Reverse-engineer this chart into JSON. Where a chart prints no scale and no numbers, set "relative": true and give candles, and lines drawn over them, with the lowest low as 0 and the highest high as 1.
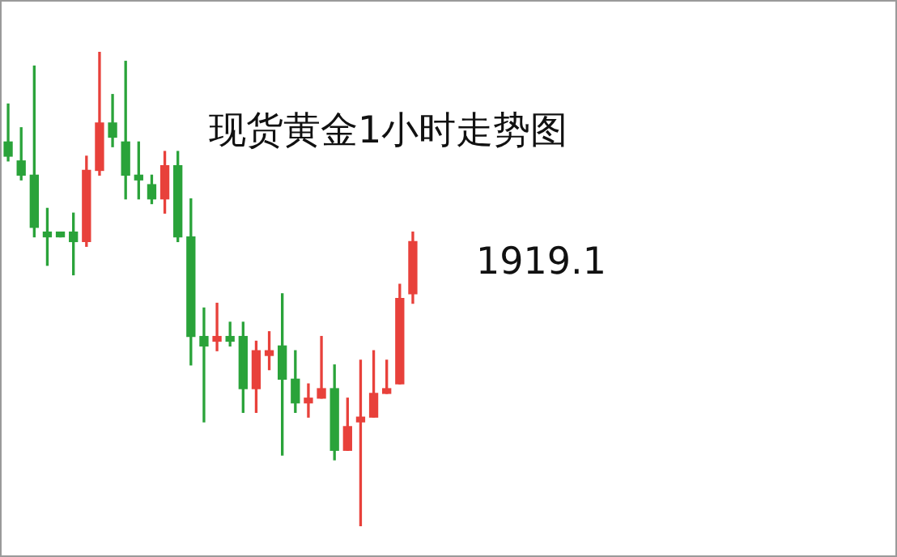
{
  "chart_data": {
    "type": "candlestick",
    "title": "现货黄金1小时走势图",
    "annotations": [
      "1919.1"
    ],
    "relative": true,
    "legend": false,
    "categories": [
      null,
      null,
      null,
      null,
      null,
      null,
      null,
      null,
      null,
      null,
      null,
      null,
      null,
      null,
      null,
      null,
      null,
      null,
      null,
      null,
      null,
      null,
      null,
      null,
      null,
      null,
      null,
      null,
      null,
      null,
      null,
      null
    ],
    "ohlc": [
      [
        0.81,
        0.89,
        0.77,
        0.78
      ],
      [
        0.77,
        0.84,
        0.73,
        0.74
      ],
      [
        0.74,
        0.97,
        0.61,
        0.63
      ],
      [
        0.62,
        0.67,
        0.55,
        0.61
      ],
      [
        0.62,
        0.62,
        0.61,
        0.61
      ],
      [
        0.62,
        0.66,
        0.53,
        0.6
      ],
      [
        0.6,
        0.78,
        0.59,
        0.75
      ],
      [
        0.75,
        1,
        0.74,
        0.85
      ],
      [
        0.85,
        0.91,
        0.8,
        0.82
      ],
      [
        0.81,
        0.98,
        0.69,
        0.74
      ],
      [
        0.74,
        0.81,
        0.69,
        0.73
      ],
      [
        0.72,
        0.74,
        0.68,
        0.69
      ],
      [
        0.69,
        0.79,
        0.66,
        0.76
      ],
      [
        0.76,
        0.79,
        0.6,
        0.61
      ],
      [
        0.61,
        0.69,
        0.34,
        0.4
      ],
      [
        0.4,
        0.46,
        0.22,
        0.38
      ],
      [
        0.39,
        0.47,
        0.37,
        0.4
      ],
      [
        0.4,
        0.43,
        0.38,
        0.39
      ],
      [
        0.4,
        0.43,
        0.24,
        0.29
      ],
      [
        0.29,
        0.39,
        0.24,
        0.37
      ],
      [
        0.36,
        0.41,
        0.33,
        0.37
      ],
      [
        0.38,
        0.49,
        0.15,
        0.31
      ],
      [
        0.31,
        0.37,
        0.24,
        0.26
      ],
      [
        0.26,
        0.3,
        0.23,
        0.27
      ],
      [
        0.27,
        0.4,
        0.27,
        0.29
      ],
      [
        0.29,
        0.34,
        0.14,
        0.16
      ],
      [
        0.16,
        0.27,
        0.16,
        0.21
      ],
      [
        0.22,
        0.35,
        0,
        0.23
      ],
      [
        0.23,
        0.37,
        0.23,
        0.28
      ],
      [
        0.28,
        0.35,
        0.28,
        0.29
      ],
      [
        0.3,
        0.51,
        0.3,
        0.48
      ],
      [
        0.49,
        0.62,
        0.47,
        0.6
      ]
    ],
    "colors": [
      "#2aa33a",
      "#2aa33a",
      "#2aa33a",
      "#2aa33a",
      "#2aa33a",
      "#2aa33a",
      "#e8413b",
      "#e8413b",
      "#2aa33a",
      "#2aa33a",
      "#2aa33a",
      "#2aa33a",
      "#e8413b",
      "#2aa33a",
      "#2aa33a",
      "#2aa33a",
      "#e8413b",
      "#2aa33a",
      "#2aa33a",
      "#e8413b",
      "#e8413b",
      "#2aa33a",
      "#2aa33a",
      "#e8413b",
      "#e8413b",
      "#2aa33a",
      "#e8413b",
      "#e8413b",
      "#e8413b",
      "#e8413b",
      "#e8413b",
      "#e8413b"
    ]
  }
}
